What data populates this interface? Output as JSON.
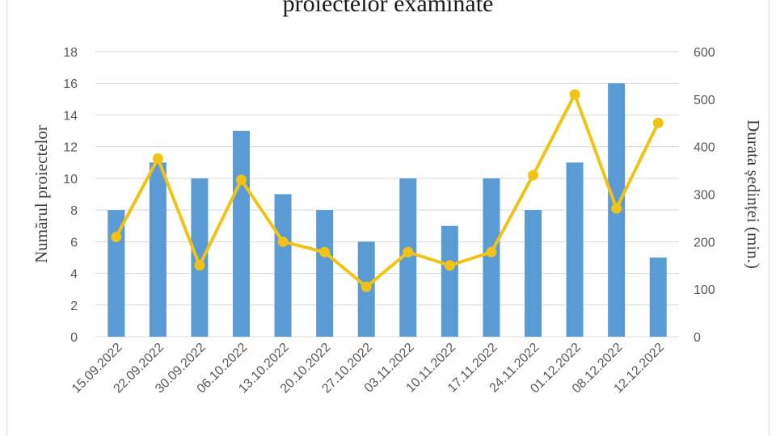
{
  "chart_data": {
    "type": "bar",
    "title": "proiectelor examinate",
    "categories": [
      "15.09.2022",
      "22.09.2022",
      "30.09.2022",
      "06.10.2022",
      "13.10.2022",
      "20.10.2022",
      "27.10.2022",
      "03.11.2022",
      "10.11.2022",
      "17.11.2022",
      "24.11.2022",
      "01.12.2022",
      "08.12.2022",
      "12.12.2022"
    ],
    "series": [
      {
        "type": "bar",
        "axis": "left",
        "color": "#5b9bd5",
        "values": [
          8,
          11,
          10,
          13,
          9,
          8,
          6,
          10,
          7,
          10,
          8,
          11,
          16,
          5
        ]
      },
      {
        "type": "line",
        "axis": "right",
        "color": "#f2c314",
        "values": [
          210,
          375,
          150,
          330,
          200,
          178,
          105,
          178,
          150,
          178,
          340,
          510,
          270,
          450
        ]
      }
    ],
    "ylabel": "Numărul proiectelor",
    "y2label": "Durata ședinței (min.)",
    "ylim": [
      0,
      18
    ],
    "y2lim": [
      0,
      600
    ],
    "yticks": [
      "0",
      "2",
      "4",
      "6",
      "8",
      "10",
      "12",
      "14",
      "16",
      "18"
    ],
    "y2ticks": [
      "0",
      "100",
      "200",
      "300",
      "400",
      "500",
      "600"
    ],
    "grid": true,
    "legend": "none"
  }
}
